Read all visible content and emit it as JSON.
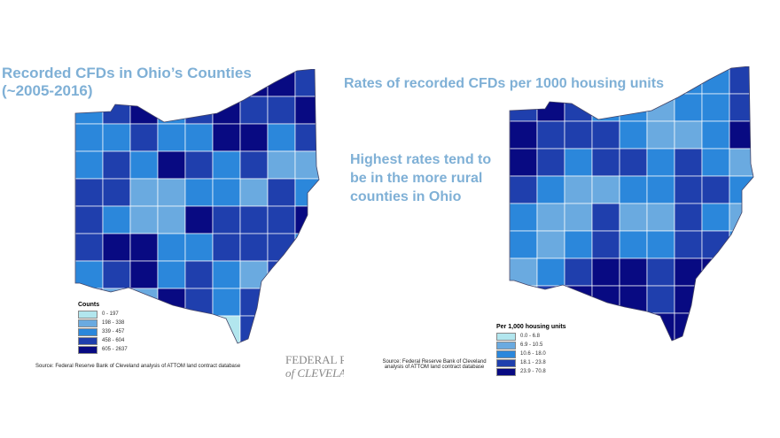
{
  "left": {
    "title": "Recorded CFDs in Ohio’s Counties (~2005-2016)",
    "legend_title": "Counts",
    "legend": [
      "0 - 197",
      "198 - 338",
      "339 - 457",
      "458 - 604",
      "605 - 2637"
    ],
    "source": "Source: Federal Reserve Bank of Cleveland analysis of ATTOM land contract database",
    "grid": [
      [
        3,
        2,
        4,
        3,
        2,
        3,
        4,
        4,
        3
      ],
      [
        2,
        3,
        4,
        2,
        3,
        4,
        3,
        3,
        4
      ],
      [
        2,
        2,
        3,
        2,
        2,
        4,
        4,
        2,
        3
      ],
      [
        2,
        3,
        2,
        4,
        3,
        2,
        3,
        1,
        1
      ],
      [
        3,
        3,
        1,
        1,
        2,
        2,
        1,
        3,
        2
      ],
      [
        3,
        2,
        1,
        1,
        4,
        3,
        3,
        3,
        4
      ],
      [
        3,
        4,
        4,
        2,
        2,
        3,
        3,
        3,
        2
      ],
      [
        2,
        3,
        4,
        2,
        3,
        2,
        1,
        3,
        4
      ],
      [
        4,
        1,
        1,
        4,
        3,
        2,
        3,
        3,
        2
      ],
      [
        4,
        3,
        3,
        2,
        3,
        0,
        3,
        3,
        2
      ]
    ]
  },
  "right": {
    "title": "Rates of recorded CFDs per 1000 housing units",
    "legend_title": "Per 1,000 housing units",
    "legend": [
      "0.0 - 6.8",
      "6.9 - 10.5",
      "10.6 - 18.0",
      "18.1 - 23.8",
      "23.9 - 70.8"
    ],
    "source": "Source: Federal Reserve Bank of Cleveland analysis of ATTOM land contract database",
    "grid": [
      [
        4,
        3,
        2,
        1,
        1,
        2,
        2,
        2,
        3
      ],
      [
        3,
        4,
        3,
        2,
        2,
        1,
        2,
        2,
        3
      ],
      [
        4,
        3,
        3,
        3,
        2,
        1,
        1,
        2,
        4
      ],
      [
        4,
        3,
        2,
        3,
        3,
        2,
        3,
        2,
        1
      ],
      [
        3,
        2,
        1,
        1,
        2,
        2,
        3,
        3,
        2
      ],
      [
        2,
        1,
        1,
        3,
        1,
        1,
        3,
        2,
        1
      ],
      [
        2,
        1,
        2,
        3,
        2,
        2,
        3,
        3,
        2
      ],
      [
        1,
        2,
        3,
        4,
        4,
        3,
        4,
        4,
        3
      ],
      [
        1,
        3,
        4,
        4,
        4,
        3,
        4,
        4,
        4
      ],
      [
        1,
        4,
        4,
        4,
        3,
        4,
        4,
        4,
        4
      ]
    ]
  },
  "note": "Highest rates tend to be in the more rural counties in Ohio",
  "logo": [
    "FEDERAL RESERVE BANK",
    "of CLEVELAND"
  ],
  "colors": [
    "#b2e6ee",
    "#6aaae0",
    "#2b87db",
    "#1f3fad",
    "#080a82"
  ]
}
